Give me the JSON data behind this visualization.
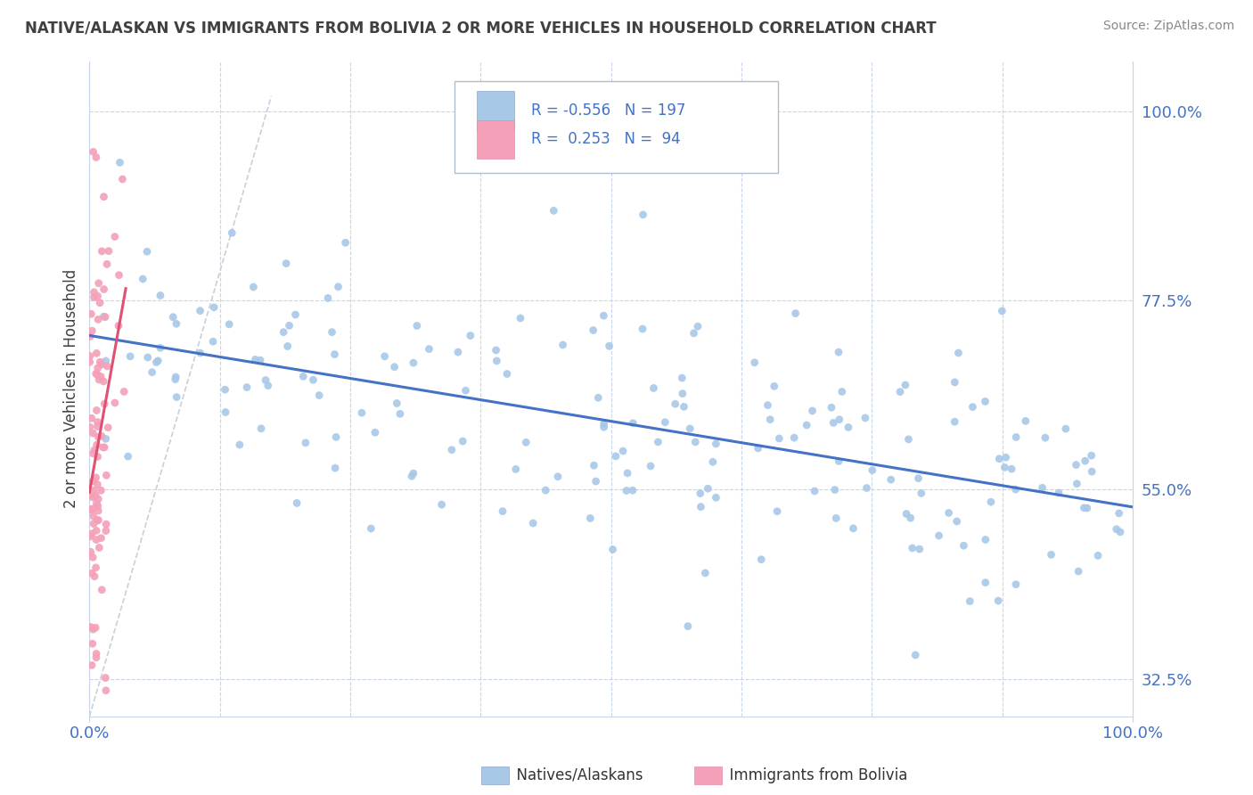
{
  "title": "NATIVE/ALASKAN VS IMMIGRANTS FROM BOLIVIA 2 OR MORE VEHICLES IN HOUSEHOLD CORRELATION CHART",
  "source": "Source: ZipAtlas.com",
  "ylabel": "2 or more Vehicles in Household",
  "right_yticks": [
    0.325,
    0.55,
    0.775,
    1.0
  ],
  "right_yticklabels": [
    "32.5%",
    "55.0%",
    "77.5%",
    "100.0%"
  ],
  "legend_blue_label": "Natives/Alaskans",
  "legend_pink_label": "Immigrants from Bolivia",
  "R_blue": -0.556,
  "N_blue": 197,
  "R_pink": 0.253,
  "N_pink": 94,
  "blue_color": "#a8c8e8",
  "pink_color": "#f4a0b8",
  "blue_line_color": "#4472c4",
  "pink_line_color": "#e05070",
  "background_color": "#ffffff",
  "grid_color": "#c8d4e8",
  "text_color": "#4472c4",
  "title_color": "#404040",
  "diagonal_color": "#c8d0dc",
  "xmin": 0.0,
  "xmax": 1.0,
  "ymin": 0.28,
  "ymax": 1.06,
  "figsize": [
    14.06,
    8.92
  ]
}
